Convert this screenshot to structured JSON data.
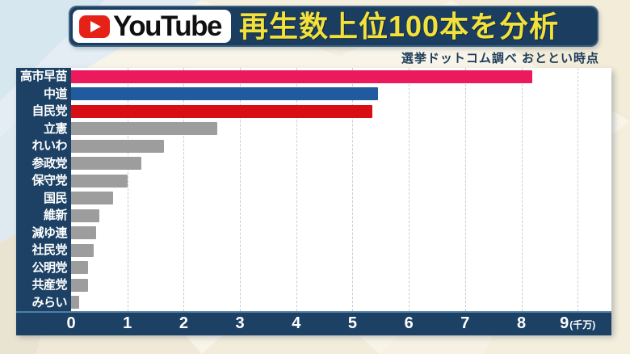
{
  "header": {
    "youtube_label": "YouTube",
    "title": "再生数上位100本を分析",
    "source_note": "選挙ドットコム調べ おととい時点"
  },
  "chart_data": {
    "type": "bar",
    "orientation": "horizontal",
    "title": "YouTube 再生数上位100本を分析",
    "xlabel": "再生数",
    "unit_label": "(千万)",
    "xlim": [
      0,
      9.6
    ],
    "ticks": [
      0,
      1,
      2,
      3,
      4,
      5,
      6,
      7,
      8,
      9
    ],
    "grid": "dashed-vertical",
    "legend": "none",
    "categories": [
      "高市早苗",
      "中道",
      "自民党",
      "立憲",
      "れいわ",
      "参政党",
      "保守党",
      "国民",
      "維新",
      "減ゆ連",
      "社民党",
      "公明党",
      "共産党",
      "みらい"
    ],
    "values": [
      8.2,
      5.45,
      5.35,
      2.6,
      1.65,
      1.25,
      1.0,
      0.75,
      0.5,
      0.45,
      0.4,
      0.3,
      0.3,
      0.15
    ],
    "bar_colors": [
      "#ea1a5d",
      "#1f5b9e",
      "#d90d15",
      "#9d9d9d",
      "#9d9d9d",
      "#9d9d9d",
      "#9d9d9d",
      "#9d9d9d",
      "#9d9d9d",
      "#9d9d9d",
      "#9d9d9d",
      "#9d9d9d",
      "#9d9d9d",
      "#9d9d9d"
    ]
  },
  "colors": {
    "navy": "#1c4164",
    "banner_navy": "#1b3d5f",
    "headline_yellow": "#f2e13b",
    "note_navy": "#1c3b5a",
    "youtube_red": "#e62117",
    "axis_text": "#ffffff"
  }
}
